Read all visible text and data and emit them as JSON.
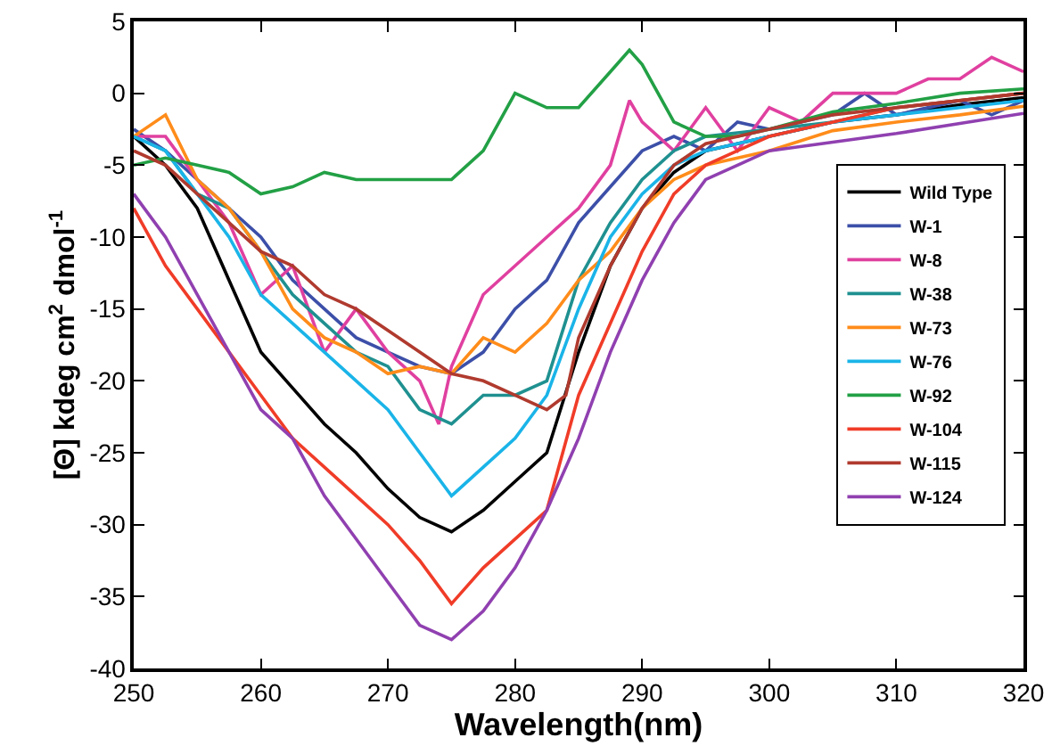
{
  "chart_data": {
    "type": "line",
    "xlabel": "Wavelength(nm)",
    "ylabel": "[Θ] kdeg cm$^{2}$ dmol$^{-1}$",
    "xlim": [
      250,
      320
    ],
    "xticks": [
      250,
      260,
      270,
      280,
      290,
      300,
      310,
      320
    ],
    "ylim": [
      -40,
      5
    ],
    "yticks": [
      -40,
      -35,
      -30,
      -25,
      -20,
      -15,
      -10,
      -5,
      0,
      5
    ],
    "grid": false,
    "legend": "right",
    "marker": "none",
    "line_style": "solid",
    "series": [
      {
        "name": "Wild Type",
        "color": "#000000",
        "x": [
          250,
          252.5,
          255,
          257.5,
          260,
          262.5,
          265,
          267.5,
          270,
          272.5,
          275,
          277.5,
          280,
          282.5,
          285,
          287.5,
          290,
          292.5,
          295,
          297.5,
          300,
          305,
          310,
          315,
          320
        ],
        "values": [
          -3,
          -5,
          -8,
          -13,
          -18,
          -20.5,
          -23,
          -25,
          -27.5,
          -29.5,
          -30.5,
          -29,
          -27,
          -25,
          -18,
          -12,
          -8,
          -5.5,
          -4,
          -3.5,
          -3,
          -2,
          -1.5,
          -0.8,
          -0.3
        ]
      },
      {
        "name": "W-1",
        "color": "#3c4fa8",
        "x": [
          250,
          252.5,
          255,
          257.5,
          260,
          262.5,
          265,
          267.5,
          270,
          272.5,
          275,
          277.5,
          280,
          282.5,
          285,
          287.5,
          290,
          292.5,
          295,
          297.5,
          300,
          305,
          307.5,
          310,
          315,
          317.5,
          320
        ],
        "values": [
          -2.5,
          -4,
          -6,
          -8,
          -10,
          -13,
          -15,
          -17,
          -18,
          -19,
          -19.5,
          -18,
          -15,
          -13,
          -9,
          -6.5,
          -4,
          -3,
          -4,
          -2,
          -2.5,
          -1.5,
          0,
          -1.5,
          -0.5,
          -1.5,
          -0.5
        ]
      },
      {
        "name": "W-8",
        "color": "#e040a0",
        "x": [
          250,
          252.5,
          255,
          257.5,
          260,
          262.5,
          265,
          267.5,
          270,
          272.5,
          274,
          275,
          277.5,
          280,
          282.5,
          285,
          287.5,
          289,
          290,
          292.5,
          295,
          297.5,
          300,
          302.5,
          305,
          307.5,
          310,
          312.5,
          315,
          317.5,
          320
        ],
        "values": [
          -3,
          -3,
          -6,
          -9,
          -14,
          -12,
          -18,
          -15,
          -18,
          -20,
          -23,
          -19,
          -14,
          -12,
          -10,
          -8,
          -5,
          -0.5,
          -2,
          -4,
          -1,
          -4,
          -1,
          -2,
          0,
          0,
          0,
          1,
          1,
          2.5,
          1.5
        ]
      },
      {
        "name": "W-38",
        "color": "#1f9090",
        "x": [
          250,
          252.5,
          255,
          257.5,
          260,
          262.5,
          265,
          267.5,
          270,
          272.5,
          275,
          277.5,
          280,
          282.5,
          285,
          287.5,
          290,
          292.5,
          295,
          300,
          305,
          310,
          315,
          320
        ],
        "values": [
          -3,
          -4,
          -7,
          -8,
          -11,
          -14,
          -16,
          -18,
          -19,
          -22,
          -23,
          -21,
          -21,
          -20,
          -13,
          -9,
          -6,
          -4,
          -3,
          -2.5,
          -2,
          -1,
          -0.5,
          0
        ]
      },
      {
        "name": "W-73",
        "color": "#ff8c1a",
        "x": [
          250,
          252.5,
          255,
          257.5,
          260,
          262.5,
          265,
          267.5,
          270,
          272.5,
          275,
          277.5,
          280,
          282.5,
          285,
          287.5,
          290,
          292.5,
          295,
          297.5,
          300,
          305,
          310,
          315,
          320
        ],
        "values": [
          -3,
          -1.5,
          -6,
          -8,
          -11,
          -15,
          -17,
          -18,
          -19.5,
          -19,
          -19.5,
          -17,
          -18,
          -16,
          -13,
          -11,
          -8,
          -6,
          -5,
          -4.5,
          -4,
          -2.6,
          -2,
          -1.5,
          -0.9
        ]
      },
      {
        "name": "W-76",
        "color": "#1ab4e8",
        "x": [
          250,
          252.5,
          255,
          257.5,
          260,
          262.5,
          265,
          267.5,
          270,
          272.5,
          275,
          277.5,
          280,
          282.5,
          285,
          287.5,
          290,
          292.5,
          295,
          300,
          305,
          310,
          315,
          320
        ],
        "values": [
          -3,
          -4,
          -7,
          -10,
          -14,
          -16,
          -18,
          -20,
          -22,
          -25,
          -28,
          -26,
          -24,
          -21,
          -15,
          -10,
          -7,
          -5,
          -4,
          -3,
          -2,
          -1.5,
          -1,
          -0.5
        ]
      },
      {
        "name": "W-92",
        "color": "#22a045",
        "x": [
          250,
          252.5,
          255,
          257.5,
          260,
          262.5,
          265,
          267.5,
          270,
          272.5,
          275,
          277.5,
          280,
          282.5,
          285,
          287.5,
          289,
          290,
          292.5,
          295,
          297.5,
          300,
          305,
          310,
          315,
          320
        ],
        "values": [
          -5,
          -4.5,
          -5,
          -5.5,
          -7,
          -6.5,
          -5.5,
          -6,
          -6,
          -6,
          -6,
          -4,
          0,
          -1,
          -1,
          1.5,
          3,
          2,
          -2,
          -3,
          -3,
          -2.5,
          -1.3,
          -0.7,
          0,
          0.3
        ]
      },
      {
        "name": "W-104",
        "color": "#f03c28",
        "x": [
          250,
          252.5,
          255,
          257.5,
          260,
          262.5,
          265,
          267.5,
          270,
          272.5,
          275,
          277.5,
          280,
          282.5,
          285,
          287.5,
          290,
          292.5,
          295,
          297.5,
          300,
          305,
          310,
          315,
          320
        ],
        "values": [
          -8,
          -12,
          -15,
          -18,
          -21,
          -24,
          -26,
          -28,
          -30,
          -32.5,
          -35.5,
          -33,
          -31,
          -29,
          -21,
          -16,
          -11,
          -7,
          -5,
          -4,
          -3,
          -2,
          -1,
          -0.5,
          0
        ]
      },
      {
        "name": "W-115",
        "color": "#b03a2e",
        "x": [
          250,
          252.5,
          255,
          257.5,
          260,
          262.5,
          265,
          267.5,
          270,
          272.5,
          275,
          277.5,
          280,
          282.5,
          284,
          285,
          287.5,
          290,
          292.5,
          295,
          300,
          305,
          310,
          315,
          320
        ],
        "values": [
          -4,
          -5,
          -7,
          -9,
          -11,
          -12,
          -14,
          -15,
          -16.5,
          -18,
          -19.5,
          -20,
          -21,
          -22,
          -21,
          -17,
          -12,
          -8,
          -5,
          -3.5,
          -2.5,
          -1.5,
          -1,
          -0.5,
          0
        ]
      },
      {
        "name": "W-124",
        "color": "#9040b0",
        "x": [
          250,
          252.5,
          255,
          257.5,
          260,
          262.5,
          265,
          267.5,
          270,
          272.5,
          275,
          277.5,
          280,
          282.5,
          285,
          287.5,
          290,
          292.5,
          295,
          297.5,
          300,
          305,
          310,
          315,
          320
        ],
        "values": [
          -7,
          -10,
          -14,
          -18,
          -22,
          -24,
          -28,
          -31,
          -34,
          -37,
          -38,
          -36,
          -33,
          -29,
          -24,
          -18,
          -13,
          -9,
          -6,
          -5,
          -4,
          -3.4,
          -2.8,
          -2.1,
          -1.4
        ]
      }
    ]
  }
}
